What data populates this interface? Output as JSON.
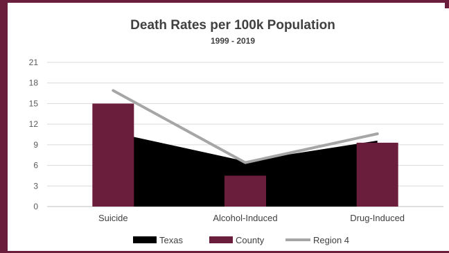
{
  "chart_data": {
    "type": "bar",
    "title": "Death Rates per 100k Population",
    "subtitle": "1999 - 2019",
    "categories": [
      "Suicide",
      "Alcohol-Induced",
      "Drug-Induced"
    ],
    "ylim": [
      0,
      21
    ],
    "yticks": [
      "0",
      "3",
      "6",
      "9",
      "12",
      "15",
      "18",
      "21"
    ],
    "series": [
      {
        "name": "Texas",
        "kind": "area",
        "color": "#000000",
        "values": [
          10.8,
          6.6,
          9.6
        ]
      },
      {
        "name": "County",
        "kind": "bar",
        "color": "#6b1e3c",
        "values": [
          15.0,
          4.5,
          9.3
        ]
      },
      {
        "name": "Region 4",
        "kind": "line",
        "color": "#a6a6a6",
        "values": [
          16.9,
          6.4,
          10.6
        ]
      }
    ],
    "grid": true,
    "legend": "bottom"
  }
}
